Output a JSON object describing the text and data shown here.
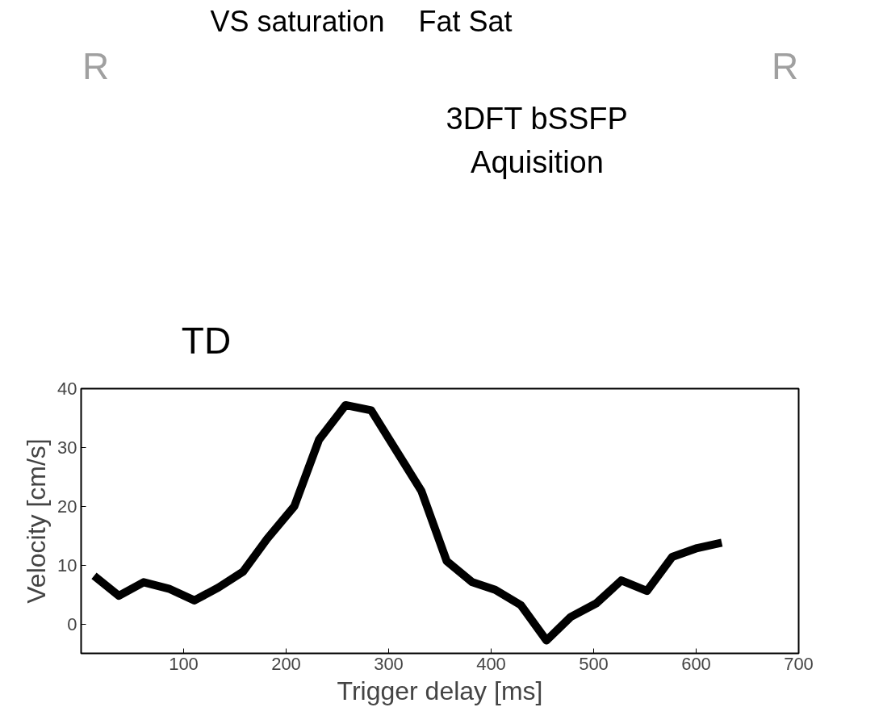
{
  "chart_data": [
    {
      "type": "other",
      "annotations": [
        "R",
        "VS saturation",
        "Fat Sat",
        "3DFT bSSFP\nAquisition",
        "R",
        "TD"
      ]
    },
    {
      "type": "line",
      "xlabel": "Trigger delay [ms]",
      "ylabel": "Velocity [cm/s]",
      "xlim": [
        0,
        700
      ],
      "ylim": [
        -5,
        40
      ],
      "xticks": [
        100,
        200,
        300,
        400,
        500,
        600,
        700
      ],
      "yticks": [
        0,
        10,
        20,
        30,
        40
      ],
      "grid": false,
      "series": [
        {
          "color": "#000000",
          "x": [
            12.6,
            36.8,
            61,
            85.5,
            110.5,
            134,
            158,
            181.6,
            208,
            232,
            258,
            283,
            307,
            332,
            356.6,
            381.6,
            404,
            429,
            454,
            477.6,
            502.6,
            527,
            552,
            576.6,
            601,
            625
          ],
          "values": [
            8.2,
            4.8,
            7.1,
            6.0,
            4.0,
            6.2,
            8.9,
            14.5,
            20.0,
            31.3,
            37.2,
            36.3,
            29.6,
            22.6,
            10.7,
            7.1,
            5.8,
            3.2,
            -2.8,
            1.2,
            3.5,
            7.4,
            5.6,
            11.4,
            12.9,
            13.8
          ]
        }
      ]
    }
  ]
}
